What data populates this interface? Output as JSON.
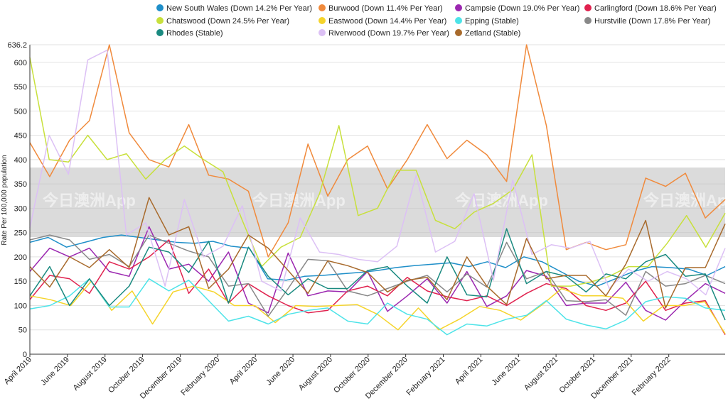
{
  "chart_data": {
    "type": "line",
    "title": "",
    "ylabel": "Rate Per 100,000 population",
    "xlabel": "",
    "ylim": [
      0,
      636.2
    ],
    "ymax_label": "636.2",
    "yticks": [
      0,
      50,
      100,
      150,
      200,
      250,
      300,
      350,
      400,
      450,
      500,
      550,
      600
    ],
    "x_labels": [
      "April 2019",
      "June 2019",
      "August 2019",
      "October 2019",
      "December 2019",
      "February 2020",
      "April 2020",
      "June 2020",
      "August 2020",
      "October 2020",
      "December 2020",
      "February 2021",
      "April 2021",
      "June 2021",
      "August 2021",
      "October 2021",
      "December 2021",
      "February 2022"
    ],
    "watermark": "今日澳洲App",
    "series": [
      {
        "name": "New South Wales (Down 14.2% Per Year)",
        "color": "#1f8fc9",
        "values": [
          230,
          240,
          220,
          230,
          240,
          245,
          240,
          235,
          230,
          228,
          232,
          222,
          218,
          155,
          152,
          160,
          162,
          165,
          168,
          172,
          178,
          182,
          185,
          188,
          180,
          190,
          178,
          200,
          190,
          170,
          150,
          140,
          155,
          170,
          180,
          178,
          175,
          162,
          180
        ]
      },
      {
        "name": "Burwood (Down 11.4% Per Year)",
        "color": "#f08a3c",
        "values": [
          435,
          365,
          440,
          480,
          636,
          455,
          400,
          385,
          472,
          368,
          360,
          335,
          200,
          270,
          432,
          325,
          400,
          428,
          340,
          400,
          472,
          402,
          440,
          410,
          355,
          636,
          470,
          215,
          230,
          215,
          225,
          362,
          345,
          372,
          280,
          318
        ]
      },
      {
        "name": "Campsie (Down 19.0% Per Year)",
        "color": "#9b27b0",
        "values": [
          170,
          218,
          200,
          218,
          170,
          160,
          262,
          175,
          185,
          150,
          210,
          105,
          85,
          208,
          120,
          130,
          128,
          170,
          88,
          120,
          155,
          105,
          170,
          98,
          120,
          172,
          160,
          100,
          105,
          105,
          148,
          90,
          70,
          110,
          145,
          125
        ]
      },
      {
        "name": "Carlingford (Down 18.6% Per Year)",
        "color": "#e0224e",
        "values": [
          112,
          162,
          155,
          125,
          190,
          175,
          200,
          235,
          125,
          175,
          105,
          145,
          120,
          100,
          85,
          90,
          130,
          140,
          120,
          158,
          130,
          118,
          110,
          120,
          100,
          125,
          145,
          135,
          100,
          90,
          105,
          150,
          90,
          105,
          110,
          40
        ]
      },
      {
        "name": "Chatswood (Down 24.5% Per Year)",
        "color": "#c8e03c",
        "values": [
          610,
          400,
          395,
          450,
          400,
          412,
          360,
          400,
          428,
          400,
          375,
          275,
          180,
          220,
          240,
          330,
          470,
          285,
          300,
          378,
          378,
          275,
          258,
          292,
          310,
          338,
          410,
          140,
          140,
          148,
          160,
          180,
          180,
          228,
          285,
          220,
          290
        ]
      },
      {
        "name": "Eastwood (Down 14.4% Per Year)",
        "color": "#f5d42b",
        "values": [
          120,
          112,
          100,
          150,
          90,
          130,
          62,
          128,
          140,
          128,
          100,
          100,
          65,
          100,
          98,
          100,
          102,
          82,
          50,
          95,
          50,
          72,
          98,
          90,
          70,
          100,
          135,
          120,
          120,
          115,
          68,
          100,
          100,
          108,
          42
        ]
      },
      {
        "name": "Epping (Stable)",
        "color": "#4de3e8",
        "values": [
          93,
          100,
          120,
          155,
          97,
          97,
          155,
          130,
          152,
          110,
          68,
          78,
          62,
          82,
          90,
          95,
          68,
          62,
          105,
          82,
          72,
          40,
          62,
          58,
          72,
          80,
          110,
          72,
          60,
          52,
          70,
          108,
          118,
          115,
          95,
          90
        ]
      },
      {
        "name": "Hurstville (Down 17.8% Per Year)",
        "color": "#888888",
        "values": [
          235,
          245,
          235,
          195,
          205,
          180,
          245,
          228,
          212,
          200,
          140,
          145,
          78,
          135,
          195,
          192,
          130,
          120,
          135,
          150,
          162,
          128,
          165,
          138,
          230,
          155,
          170,
          110,
          108,
          112,
          80,
          170,
          140,
          145,
          162,
          145
        ]
      },
      {
        "name": "Rhodes (Stable)",
        "color": "#1a8a80",
        "values": [
          120,
          180,
          100,
          155,
          100,
          140,
          220,
          210,
          168,
          232,
          105,
          220,
          160,
          122,
          155,
          135,
          135,
          172,
          180,
          140,
          105,
          200,
          122,
          118,
          258,
          145,
          170,
          160,
          128,
          165,
          155,
          190,
          205,
          160,
          165,
          70
        ]
      },
      {
        "name": "Riverwood (Down 19.7% Per Year)",
        "color": "#dcc0f5",
        "values": [
          260,
          450,
          370,
          605,
          625,
          245,
          270,
          140,
          318,
          200,
          222,
          305,
          150,
          130,
          280,
          210,
          205,
          195,
          190,
          222,
          368,
          210,
          232,
          330,
          152,
          358,
          205,
          225,
          218,
          232,
          135,
          175,
          150,
          170,
          155,
          122,
          218
        ]
      },
      {
        "name": "Zetland (Stable)",
        "color": "#a86a2c",
        "values": [
          180,
          138,
          200,
          178,
          215,
          178,
          322,
          245,
          262,
          135,
          175,
          245,
          218,
          172,
          125,
          192,
          182,
          168,
          128,
          152,
          158,
          112,
          200,
          140,
          102,
          238,
          155,
          162,
          162,
          120,
          185,
          275,
          95,
          178,
          178,
          268
        ]
      }
    ]
  }
}
